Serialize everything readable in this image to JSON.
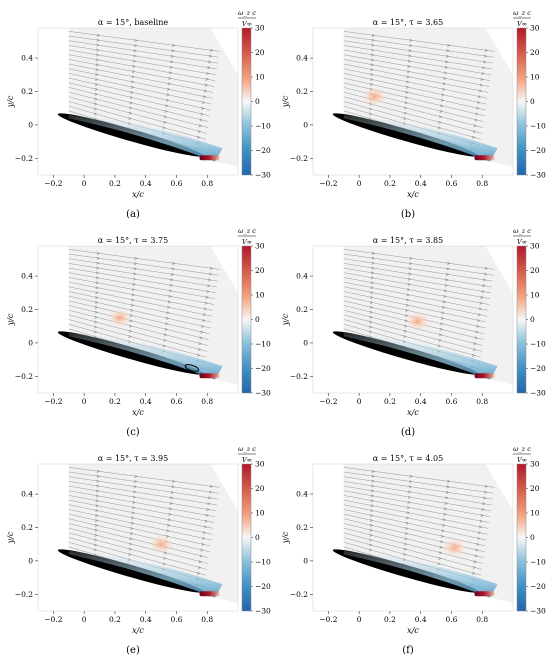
{
  "figure": {
    "shared_axes": {
      "xlabel": "x/c",
      "ylabel": "y/c",
      "x_ticks": [
        "−0.2",
        "0",
        "0.2",
        "0.4",
        "0.6",
        "0.8"
      ],
      "y_ticks": [
        "0.4",
        "0.2",
        "0",
        "−0.2"
      ],
      "colorbar_ticks": [
        "30",
        "20",
        "10",
        "0",
        "−10",
        "−20",
        "−30"
      ],
      "colorbar_label_numerator": "ω_z c",
      "colorbar_label_denominator": "V∞"
    },
    "colors": {
      "positive": "#b2182b",
      "negative": "#2166ac",
      "airfoil": "#000000",
      "streamline": "#8c8c8c"
    }
  },
  "chart_data": [
    {
      "type": "heatmap",
      "panel_label": "(a)",
      "title": "α = 15°, baseline",
      "xlabel": "x/c",
      "ylabel": "y/c",
      "xlim": [
        -0.3,
        1.0
      ],
      "ylim": [
        -0.3,
        0.58
      ],
      "colorbar": {
        "label": "ω_z c / V∞",
        "range": [
          -30,
          30
        ]
      },
      "features": [
        {
          "kind": "shear_layer",
          "sign": "negative",
          "x_start": -0.1,
          "x_end": 0.85,
          "peak_vorticity": -20
        },
        {
          "kind": "wake",
          "sign": "positive",
          "x_start": 0.75,
          "x_end": 0.88,
          "y": -0.2,
          "peak_vorticity": 30
        }
      ]
    },
    {
      "type": "heatmap",
      "panel_label": "(b)",
      "title": "α = 15°, τ = 3.65",
      "xlabel": "x/c",
      "ylabel": "y/c",
      "xlim": [
        -0.3,
        1.0
      ],
      "ylim": [
        -0.3,
        0.58
      ],
      "colorbar": {
        "label": "ω_z c / V∞",
        "range": [
          -30,
          30
        ]
      },
      "features": [
        {
          "kind": "vortex",
          "sign": "positive",
          "x": 0.1,
          "y": 0.17,
          "peak_vorticity": 10
        },
        {
          "kind": "shear_layer",
          "sign": "negative",
          "x_start": -0.1,
          "x_end": 0.85,
          "peak_vorticity": -25
        },
        {
          "kind": "wake",
          "sign": "positive",
          "x_start": 0.75,
          "x_end": 0.88,
          "y": -0.2,
          "peak_vorticity": 30
        }
      ]
    },
    {
      "type": "heatmap",
      "panel_label": "(c)",
      "title": "α = 15°, τ = 3.75",
      "xlabel": "x/c",
      "ylabel": "y/c",
      "xlim": [
        -0.3,
        1.0
      ],
      "ylim": [
        -0.3,
        0.58
      ],
      "colorbar": {
        "label": "ω_z c / V∞",
        "range": [
          -30,
          30
        ]
      },
      "features": [
        {
          "kind": "vortex",
          "sign": "positive",
          "x": 0.23,
          "y": 0.15,
          "peak_vorticity": 10
        },
        {
          "kind": "shear_layer",
          "sign": "negative",
          "x_start": -0.1,
          "x_end": 0.85,
          "peak_vorticity": -25
        },
        {
          "kind": "separation_bubble",
          "x": 0.7,
          "y": -0.15
        },
        {
          "kind": "wake",
          "sign": "positive",
          "x_start": 0.75,
          "x_end": 0.88,
          "y": -0.2,
          "peak_vorticity": 30
        }
      ]
    },
    {
      "type": "heatmap",
      "panel_label": "(d)",
      "title": "α = 15°, τ = 3.85",
      "xlabel": "x/c",
      "ylabel": "y/c",
      "xlim": [
        -0.3,
        1.0
      ],
      "ylim": [
        -0.3,
        0.58
      ],
      "colorbar": {
        "label": "ω_z c / V∞",
        "range": [
          -30,
          30
        ]
      },
      "features": [
        {
          "kind": "vortex",
          "sign": "positive",
          "x": 0.38,
          "y": 0.13,
          "peak_vorticity": 10
        },
        {
          "kind": "shear_layer",
          "sign": "negative",
          "x_start": -0.1,
          "x_end": 0.85,
          "peak_vorticity": -25
        },
        {
          "kind": "wake",
          "sign": "positive",
          "x_start": 0.75,
          "x_end": 0.88,
          "y": -0.2,
          "peak_vorticity": 30
        }
      ]
    },
    {
      "type": "heatmap",
      "panel_label": "(e)",
      "title": "α = 15°, τ = 3.95",
      "xlabel": "x/c",
      "ylabel": "y/c",
      "xlim": [
        -0.3,
        1.0
      ],
      "ylim": [
        -0.3,
        0.58
      ],
      "colorbar": {
        "label": "ω_z c / V∞",
        "range": [
          -30,
          30
        ]
      },
      "features": [
        {
          "kind": "vortex",
          "sign": "positive",
          "x": 0.5,
          "y": 0.1,
          "peak_vorticity": 10
        },
        {
          "kind": "shear_layer",
          "sign": "negative",
          "x_start": -0.1,
          "x_end": 0.85,
          "peak_vorticity": -25
        },
        {
          "kind": "wake",
          "sign": "positive",
          "x_start": 0.75,
          "x_end": 0.88,
          "y": -0.2,
          "peak_vorticity": 30
        }
      ]
    },
    {
      "type": "heatmap",
      "panel_label": "(f)",
      "title": "α = 15°, τ = 4.05",
      "xlabel": "x/c",
      "ylabel": "y/c",
      "xlim": [
        -0.3,
        1.0
      ],
      "ylim": [
        -0.3,
        0.58
      ],
      "colorbar": {
        "label": "ω_z c / V∞",
        "range": [
          -30,
          30
        ]
      },
      "features": [
        {
          "kind": "vortex",
          "sign": "positive",
          "x": 0.62,
          "y": 0.08,
          "peak_vorticity": 10
        },
        {
          "kind": "shear_layer",
          "sign": "negative",
          "x_start": -0.1,
          "x_end": 0.85,
          "peak_vorticity": -25
        },
        {
          "kind": "wake",
          "sign": "positive",
          "x_start": 0.75,
          "x_end": 0.88,
          "y": -0.2,
          "peak_vorticity": 30
        }
      ]
    }
  ]
}
